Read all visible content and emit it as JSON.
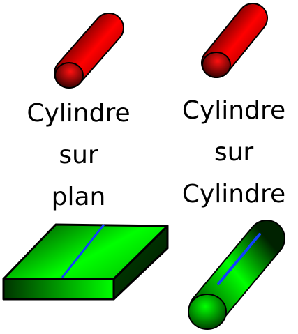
{
  "labels": {
    "left": {
      "lines": [
        "Cylindre",
        "sur",
        "plan"
      ]
    },
    "right": {
      "lines": [
        "Cylindre",
        "sur",
        "Cylindre"
      ]
    }
  },
  "colors": {
    "cylinder_red": "#ff0000",
    "cylinder_red_dark": "#3a0000",
    "block_green": "#00ff00",
    "block_green_dark": "#003300",
    "contact_line": "#1040ff",
    "outline": "#000000"
  },
  "icons": [
    "red-cylinder-icon",
    "green-block-icon",
    "green-cylinder-icon",
    "contact-line-icon"
  ]
}
